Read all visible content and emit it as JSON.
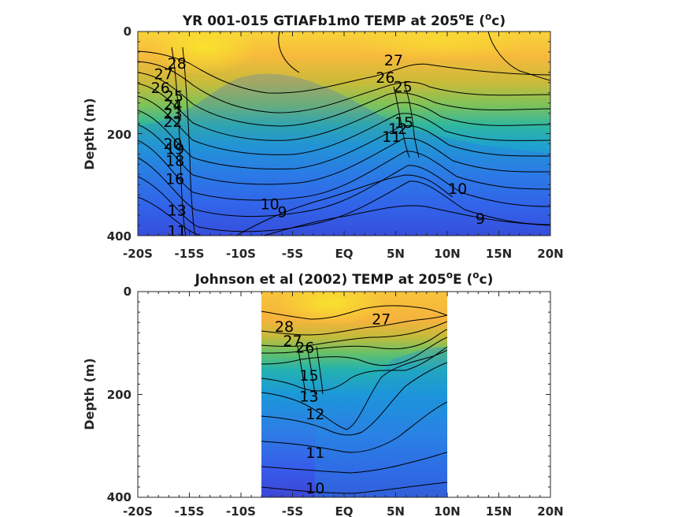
{
  "chart_data": [
    {
      "type": "heatmap",
      "variant": "filled-contour",
      "title_main": "YR 001-015 GTIAFb1m0 TEMP at 205",
      "title_sup": "o",
      "title_mid": "E (",
      "title_unit_sup": "o",
      "title_end": "c)",
      "xlabel": "",
      "ylabel": "Depth (m)",
      "x_ticks": [
        "-20S",
        "-15S",
        "-10S",
        "-5S",
        "EQ",
        "5N",
        "10N",
        "15N",
        "20N"
      ],
      "y_ticks": [
        "0",
        "200",
        "400"
      ],
      "xlim": [
        -20,
        20
      ],
      "ylim": [
        400,
        0
      ],
      "data_x_range": [
        -20,
        20
      ],
      "colormap": "parula",
      "color_range": [
        8,
        29
      ],
      "contour_labels": [
        {
          "text": "28",
          "x": -16.2,
          "y": 64
        },
        {
          "text": "27",
          "x": -17.5,
          "y": 85
        },
        {
          "text": "26",
          "x": -17.8,
          "y": 112
        },
        {
          "text": "25",
          "x": -16.5,
          "y": 128
        },
        {
          "text": "24",
          "x": -16.6,
          "y": 145
        },
        {
          "text": "23",
          "x": -16.6,
          "y": 162
        },
        {
          "text": "22",
          "x": -16.6,
          "y": 178
        },
        {
          "text": "20",
          "x": -16.6,
          "y": 222
        },
        {
          "text": "19",
          "x": -16.4,
          "y": 232
        },
        {
          "text": "18",
          "x": -16.4,
          "y": 255
        },
        {
          "text": "16",
          "x": -16.4,
          "y": 290
        },
        {
          "text": "13",
          "x": -16.2,
          "y": 352
        },
        {
          "text": "11",
          "x": -16.2,
          "y": 392
        },
        {
          "text": "10",
          "x": -7.2,
          "y": 340
        },
        {
          "text": "9",
          "x": -6.0,
          "y": 355
        },
        {
          "text": "27",
          "x": 4.8,
          "y": 58
        },
        {
          "text": "26",
          "x": 4.0,
          "y": 92
        },
        {
          "text": "25",
          "x": 5.7,
          "y": 110
        },
        {
          "text": "15",
          "x": 5.8,
          "y": 180
        },
        {
          "text": "12",
          "x": 5.2,
          "y": 192
        },
        {
          "text": "11",
          "x": 4.6,
          "y": 208
        },
        {
          "text": "10",
          "x": 11.0,
          "y": 310
        },
        {
          "text": "9",
          "x": 13.2,
          "y": 368
        }
      ]
    },
    {
      "type": "heatmap",
      "variant": "filled-contour",
      "title_main": "Johnson et al (2002) TEMP at 205",
      "title_sup": "o",
      "title_mid": "E (",
      "title_unit_sup": "o",
      "title_end": "c)",
      "xlabel": "",
      "ylabel": "Depth (m)",
      "x_ticks": [
        "-20S",
        "-15S",
        "-10S",
        "-5S",
        "EQ",
        "5N",
        "10N",
        "15N",
        "20N"
      ],
      "y_ticks": [
        "0",
        "200",
        "400"
      ],
      "xlim": [
        -20,
        20
      ],
      "ylim": [
        400,
        0
      ],
      "data_x_range": [
        -8,
        10
      ],
      "colormap": "parula",
      "color_range": [
        8,
        29
      ],
      "contour_labels": [
        {
          "text": "28",
          "x": -5.8,
          "y": 70
        },
        {
          "text": "27",
          "x": -5.0,
          "y": 97
        },
        {
          "text": "26",
          "x": -3.8,
          "y": 110
        },
        {
          "text": "27",
          "x": 3.6,
          "y": 55
        },
        {
          "text": "15",
          "x": -3.4,
          "y": 165
        },
        {
          "text": "13",
          "x": -3.4,
          "y": 205
        },
        {
          "text": "12",
          "x": -2.8,
          "y": 240
        },
        {
          "text": "11",
          "x": -2.8,
          "y": 315
        },
        {
          "text": "10",
          "x": -2.8,
          "y": 384
        }
      ]
    }
  ]
}
